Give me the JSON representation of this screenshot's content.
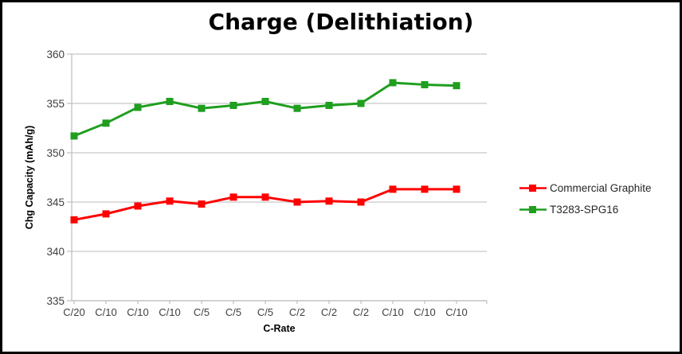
{
  "chart_data": {
    "type": "line",
    "title": "Charge (Delithiation)",
    "xlabel": "C-Rate",
    "ylabel": "Chg Capacity (mAh/g)",
    "categories": [
      "C/20",
      "C/10",
      "C/10",
      "C/10",
      "C/5",
      "C/5",
      "C/5",
      "C/2",
      "C/2",
      "C/2",
      "C/10",
      "C/10",
      "C/10"
    ],
    "series": [
      {
        "name": "Commercial Graphite",
        "color": "#ff0000",
        "values": [
          343.2,
          343.8,
          344.6,
          345.1,
          344.8,
          345.5,
          345.5,
          345.0,
          345.1,
          345.0,
          346.3,
          346.3,
          346.3
        ]
      },
      {
        "name": "T3283-SPG16",
        "color": "#1f9e1f",
        "values": [
          351.7,
          353.0,
          354.6,
          355.2,
          354.5,
          354.8,
          355.2,
          354.5,
          354.8,
          355.0,
          357.1,
          356.9,
          356.8
        ]
      }
    ],
    "ylim": [
      335,
      360
    ],
    "yticks": [
      335,
      340,
      345,
      350,
      355,
      360
    ],
    "grid": true,
    "legend_position": "right",
    "marker": "square"
  },
  "colors": {
    "grid": "#c6c6c6",
    "axis": "#bfbfbf",
    "tick_label": "#404040",
    "axis_title": "#000000",
    "title": "#000000",
    "legend_label": "#262626",
    "background": "#ffffff",
    "border": "#000000"
  }
}
